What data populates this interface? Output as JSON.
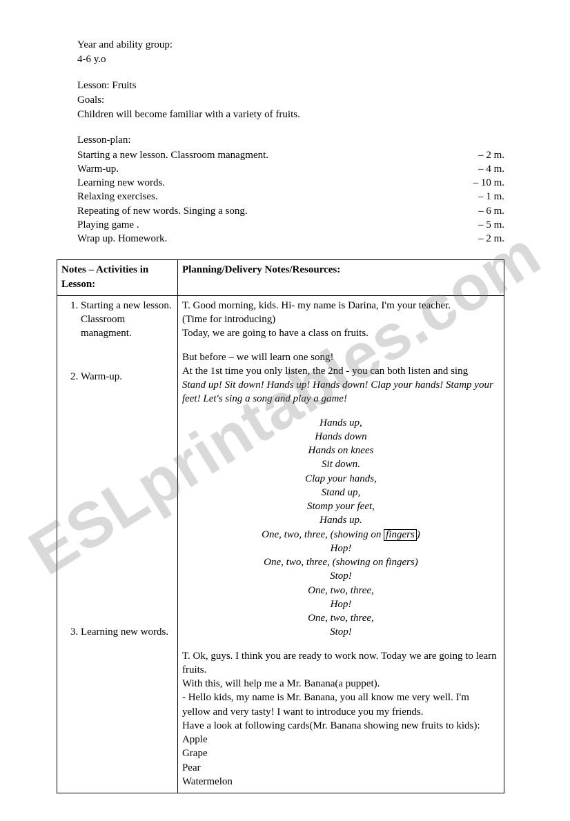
{
  "watermark_text": "ESLprintables.com",
  "header": {
    "year_label": "Year and ability group:",
    "year_value": "4-6 y.o",
    "lesson_label": "Lesson: Fruits",
    "goals_label": "Goals:",
    "goals_text": "Children will become familiar with a variety of fruits.",
    "plan_label": "Lesson-plan:",
    "plan_items": [
      {
        "text": "Starting a new lesson. Classroom managment.",
        "time": "– 2 m."
      },
      {
        "text": "Warm-up.",
        "time": "– 4 m."
      },
      {
        "text": "Learning new words.",
        "time": "– 10 m."
      },
      {
        "text": "Relaxing exercises.",
        "time": "– 1 m."
      },
      {
        "text": "Repeating of new words. Singing a song.",
        "time": "– 6 m."
      },
      {
        "text": "Playing game .",
        "time": "– 5 m."
      },
      {
        "text": "Wrap up. Homework.",
        "time": "– 2 m."
      }
    ]
  },
  "table": {
    "head_notes": "Notes – Activities in Lesson:",
    "head_plan": "Planning/Delivery Notes/Resources:",
    "activities": [
      "Starting a new lesson. Classroom managment.",
      "Warm-up.",
      "Learning new words."
    ],
    "act1": {
      "l1": "T. Good morning, kids. Hi- my name is Darina, I'm your teacher.",
      "l2": "(Time for introducing)",
      "l3": "Today, we are going to have a class on fruits."
    },
    "act2": {
      "l1": "But before – we will learn one song!",
      "l2": "At the 1st time you only listen, the 2nd - you can both listen and sing",
      "l3": "Stand up! Sit down! Hands up! Hands down! Clap your hands! Stamp your feet! Let's sing a song and play a game!",
      "song": [
        "Hands up,",
        "Hands down",
        "Hands on knees",
        "Sit down.",
        "Clap your hands,",
        "Stand up,",
        "Stomp your feet,",
        "Hands up."
      ],
      "song_fingers_pre": "One, two, three, (showing on ",
      "song_fingers_box": "fingers",
      "song_fingers_post": ")",
      "song_tail": [
        "Hop!",
        "One, two, three, (showing on fingers)",
        "Stop!",
        "One, two, three,",
        "Hop!",
        "One, two, three,",
        "Stop!"
      ]
    },
    "act3": {
      "l1": "T. Ok, guys. I think you are ready to work now. Today we are going to learn fruits.",
      "l2": "With this, will help me a Mr. Banana(a puppet).",
      "l3": "- Hello kids, my name is Mr. Banana, you all know me very well. I'm yellow and very tasty! I want to introduce you  my friends.",
      "l4": "Have a look at following cards(Mr. Banana showing new fruits to kids):",
      "fruits": [
        "Apple",
        "Grape",
        "Pear",
        "Watermelon"
      ]
    }
  }
}
